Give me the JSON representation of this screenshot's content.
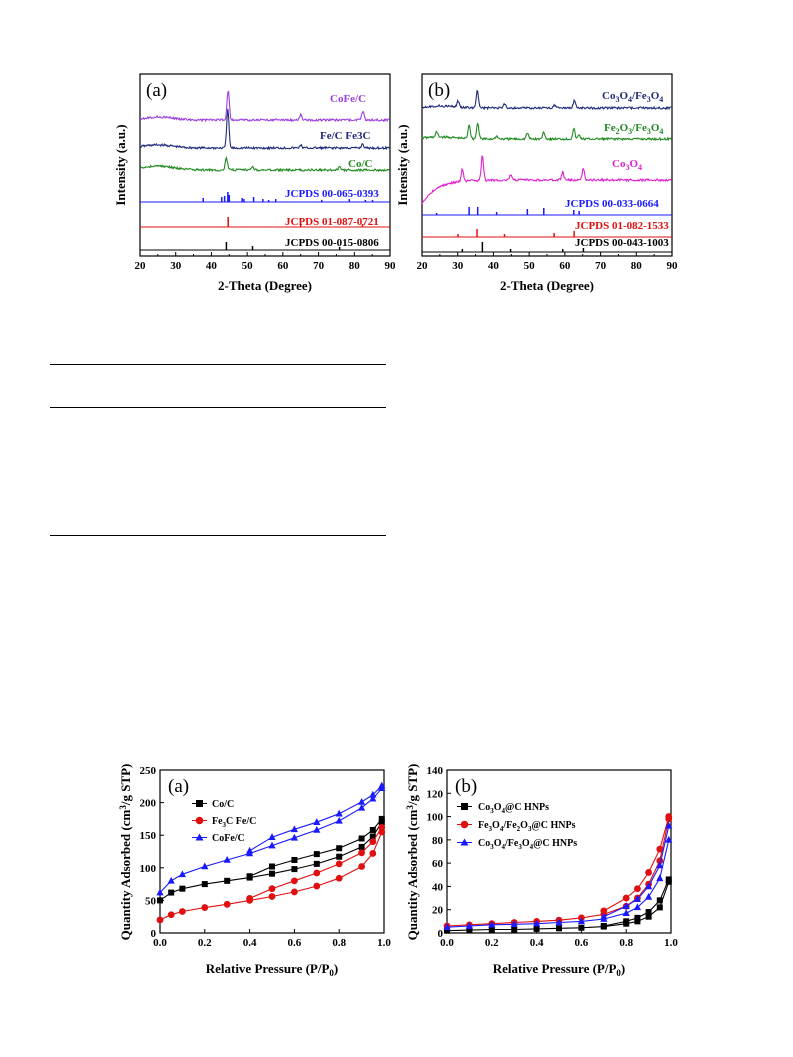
{
  "xrd": {
    "a": {
      "panel": "(a)",
      "xlabel": "2-Theta (Degree)",
      "ylabel": "Intensity (a.u.)",
      "labels": {
        "cofe": "CoFe/C",
        "fe": "Fe/C  Fe3C",
        "co": "Co/C",
        "ref1": "JCPDS 00-065-0393",
        "ref2": "JCPDS 01-087-0721",
        "ref3": "JCPDS 00-015-0806"
      }
    },
    "b": {
      "panel": "(b)",
      "xlabel": "2-Theta (Degree)",
      "ylabel": "Intensity (a.u.)",
      "labels": {
        "ref1": "JCPDS 00-033-0664",
        "ref2": "JCPDS 01-082-1533",
        "ref3": "JCPDS 00-043-1003"
      }
    }
  },
  "bet": {
    "a": {
      "panel": "(a)",
      "xlabel": "Relative Pressure (P/P",
      "xsub": "0",
      "xclose": ")",
      "ylabel": "Quantity Adsorbed (cm",
      "ysup": "3",
      "ytail": "/g STP)",
      "legend": {
        "co": "Co/C",
        "fe_pre": "Fe",
        "fe_sub": "3",
        "fe_post": "C Fe/C",
        "cofe": "CoFe/C"
      }
    },
    "b": {
      "panel": "(b)",
      "xlabel": "Relative Pressure (P/P",
      "xsub": "0",
      "xclose": ")",
      "ylabel": "Quantity Adsorbed (cm",
      "ysup": "3",
      "ytail": "/g STP)",
      "legend": {
        "l1": "Co3O4@C HNPs",
        "l2": "Fe3O4/Fe2O3@C HNPs",
        "l3": "Co3O4/Fe3O4@C HNPs"
      }
    }
  },
  "chart_data": [
    {
      "type": "line",
      "panel": "(a)",
      "xlabel": "2-Theta (Degree)",
      "ylabel": "Intensity (a.u.)",
      "xlim": [
        20,
        90
      ],
      "xticks": [
        20,
        30,
        40,
        50,
        60,
        70,
        80,
        90
      ],
      "series": [
        {
          "name": "CoFe/C",
          "color": "#9b3fe0",
          "peaks": [
            44.7,
            65.0,
            82.4
          ]
        },
        {
          "name": "Fe/C  Fe3C",
          "color": "#1f2a7a",
          "peaks": [
            44.6,
            65.0,
            82.3
          ]
        },
        {
          "name": "Co/C",
          "color": "#228b22",
          "peaks": [
            44.2,
            51.5,
            75.9
          ]
        },
        {
          "name": "JCPDS 00-065-0393",
          "color": "#1a1aff",
          "peaks": [
            37.7,
            42.9,
            43.7,
            44.6,
            45.0,
            48.6,
            49.1,
            51.8,
            54.4,
            56.0,
            58.0,
            70.9,
            78.6,
            83.1,
            85.1
          ]
        },
        {
          "name": "JCPDS 01-087-0721",
          "color": "#e01010",
          "peaks": [
            44.7,
            65.0,
            82.3
          ]
        },
        {
          "name": "JCPDS 00-015-0806",
          "color": "#000000",
          "peaks": [
            44.2,
            51.5,
            75.9
          ]
        }
      ]
    },
    {
      "type": "line",
      "panel": "(b)",
      "xlabel": "2-Theta (Degree)",
      "ylabel": "Intensity (a.u.)",
      "xlim": [
        20,
        90
      ],
      "xticks": [
        20,
        30,
        40,
        50,
        60,
        70,
        80,
        90
      ],
      "series": [
        {
          "name": "Co3O4/Fe3O4",
          "color": "#1f2a7a",
          "peaks": [
            30.1,
            35.5,
            43.2,
            57.1,
            62.7
          ]
        },
        {
          "name": "Fe2O3/Fe3O4",
          "color": "#228b22",
          "peaks": [
            24.1,
            33.2,
            35.6,
            40.9,
            49.5,
            54.1,
            62.5,
            64.0
          ]
        },
        {
          "name": "Co3O4",
          "color": "#e020d0",
          "peaks": [
            31.3,
            36.9,
            44.8,
            59.4,
            65.2
          ]
        },
        {
          "name": "JCPDS 00-033-0664",
          "color": "#1a1aff",
          "peaks": [
            24.1,
            33.2,
            35.6,
            40.9,
            49.5,
            54.1,
            62.5,
            64.0
          ]
        },
        {
          "name": "JCPDS 01-082-1533",
          "color": "#e01010",
          "peaks": [
            30.1,
            35.4,
            43.1,
            57.0,
            62.6
          ]
        },
        {
          "name": "JCPDS 00-043-1003",
          "color": "#000000",
          "peaks": [
            31.3,
            36.9,
            44.8,
            59.4,
            65.2
          ]
        }
      ]
    },
    {
      "type": "line",
      "panel": "(a)",
      "xlabel": "Relative Pressure (P/P0)",
      "ylabel": "Quantity Adsorbed (cm3/g STP)",
      "xlim": [
        0.0,
        1.0
      ],
      "ylim": [
        0,
        250
      ],
      "xticks": [
        0.0,
        0.2,
        0.4,
        0.6,
        0.8,
        1.0
      ],
      "yticks": [
        0,
        50,
        100,
        150,
        200,
        250
      ],
      "x": [
        0.0,
        0.05,
        0.1,
        0.2,
        0.3,
        0.4,
        0.5,
        0.6,
        0.7,
        0.8,
        0.9,
        0.95,
        0.99
      ],
      "series": [
        {
          "name": "Co/C",
          "color": "#000000",
          "marker": "square",
          "adsorption": [
            50,
            62,
            68,
            75,
            80,
            85,
            91,
            98,
            106,
            117,
            132,
            148,
            170
          ],
          "desorption": [
            null,
            null,
            null,
            null,
            null,
            87,
            102,
            112,
            121,
            130,
            145,
            158,
            175
          ]
        },
        {
          "name": "Fe3C Fe/C",
          "color": "#e01010",
          "marker": "circle",
          "adsorption": [
            20,
            28,
            33,
            39,
            44,
            50,
            56,
            63,
            72,
            84,
            102,
            122,
            155
          ],
          "desorption": [
            null,
            null,
            null,
            null,
            null,
            53,
            68,
            80,
            92,
            106,
            123,
            140,
            162
          ]
        },
        {
          "name": "CoFe/C",
          "color": "#1a1aff",
          "marker": "triangle",
          "adsorption": [
            62,
            80,
            90,
            102,
            112,
            122,
            134,
            146,
            158,
            172,
            192,
            206,
            222
          ],
          "desorption": [
            null,
            null,
            null,
            null,
            null,
            126,
            147,
            159,
            170,
            183,
            201,
            212,
            226
          ]
        }
      ]
    },
    {
      "type": "line",
      "panel": "(b)",
      "xlabel": "Relative Pressure (P/P0)",
      "ylabel": "Quantity Adsorbed (cm3/g STP)",
      "xlim": [
        0.0,
        1.0
      ],
      "ylim": [
        0,
        140
      ],
      "xticks": [
        0.0,
        0.2,
        0.4,
        0.6,
        0.8,
        1.0
      ],
      "yticks": [
        0,
        20,
        40,
        60,
        80,
        100,
        120,
        140
      ],
      "x": [
        0.0,
        0.1,
        0.2,
        0.3,
        0.4,
        0.5,
        0.6,
        0.7,
        0.8,
        0.85,
        0.9,
        0.95,
        0.99
      ],
      "series": [
        {
          "name": "Co3O4@C HNPs",
          "color": "#000000",
          "marker": "square",
          "adsorption": [
            2,
            2.5,
            3,
            3,
            3.5,
            4,
            4.5,
            5.5,
            8,
            10,
            14,
            22,
            44
          ],
          "desorption": [
            null,
            null,
            null,
            null,
            null,
            null,
            null,
            6,
            10,
            13,
            18,
            28,
            46
          ]
        },
        {
          "name": "Fe3O4/Fe2O3@C HNPs",
          "color": "#e01010",
          "marker": "circle",
          "adsorption": [
            6,
            7,
            8,
            9,
            10,
            11,
            13,
            16,
            23,
            30,
            42,
            62,
            98
          ],
          "desorption": [
            null,
            null,
            null,
            null,
            null,
            null,
            null,
            19,
            30,
            38,
            52,
            72,
            100
          ]
        },
        {
          "name": "Co3O4/Fe3O4@C HNPs",
          "color": "#1a1aff",
          "marker": "triangle",
          "adsorption": [
            5,
            6,
            7,
            7.5,
            8,
            9,
            10,
            12,
            17,
            22,
            31,
            47,
            80
          ],
          "desorption": [
            null,
            null,
            null,
            null,
            null,
            null,
            null,
            14,
            23,
            29,
            40,
            58,
            92
          ]
        }
      ]
    }
  ]
}
